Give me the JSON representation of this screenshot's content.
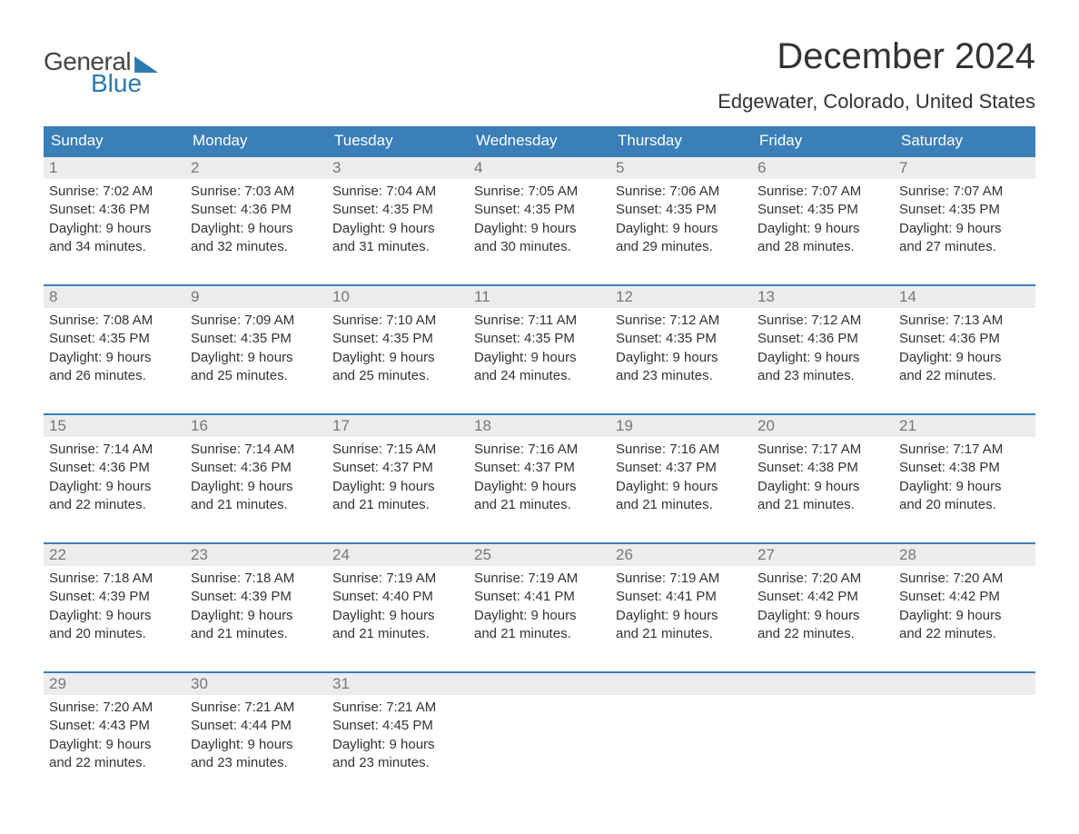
{
  "logo": {
    "textTop": "General",
    "textBottom": "Blue"
  },
  "header": {
    "monthTitle": "December 2024",
    "location": "Edgewater, Colorado, United States"
  },
  "colors": {
    "headerBlue": "#3a7fb8",
    "logoBlue": "#2a7ab0",
    "dayNumBg": "#ececec",
    "text": "#333333",
    "dayNumText": "#777777"
  },
  "days_of_week": [
    "Sunday",
    "Monday",
    "Tuesday",
    "Wednesday",
    "Thursday",
    "Friday",
    "Saturday"
  ],
  "weeks": [
    [
      {
        "n": "1",
        "sunrise": "7:02 AM",
        "sunset": "4:36 PM",
        "dl1": "Daylight: 9 hours",
        "dl2": "and 34 minutes."
      },
      {
        "n": "2",
        "sunrise": "7:03 AM",
        "sunset": "4:36 PM",
        "dl1": "Daylight: 9 hours",
        "dl2": "and 32 minutes."
      },
      {
        "n": "3",
        "sunrise": "7:04 AM",
        "sunset": "4:35 PM",
        "dl1": "Daylight: 9 hours",
        "dl2": "and 31 minutes."
      },
      {
        "n": "4",
        "sunrise": "7:05 AM",
        "sunset": "4:35 PM",
        "dl1": "Daylight: 9 hours",
        "dl2": "and 30 minutes."
      },
      {
        "n": "5",
        "sunrise": "7:06 AM",
        "sunset": "4:35 PM",
        "dl1": "Daylight: 9 hours",
        "dl2": "and 29 minutes."
      },
      {
        "n": "6",
        "sunrise": "7:07 AM",
        "sunset": "4:35 PM",
        "dl1": "Daylight: 9 hours",
        "dl2": "and 28 minutes."
      },
      {
        "n": "7",
        "sunrise": "7:07 AM",
        "sunset": "4:35 PM",
        "dl1": "Daylight: 9 hours",
        "dl2": "and 27 minutes."
      }
    ],
    [
      {
        "n": "8",
        "sunrise": "7:08 AM",
        "sunset": "4:35 PM",
        "dl1": "Daylight: 9 hours",
        "dl2": "and 26 minutes."
      },
      {
        "n": "9",
        "sunrise": "7:09 AM",
        "sunset": "4:35 PM",
        "dl1": "Daylight: 9 hours",
        "dl2": "and 25 minutes."
      },
      {
        "n": "10",
        "sunrise": "7:10 AM",
        "sunset": "4:35 PM",
        "dl1": "Daylight: 9 hours",
        "dl2": "and 25 minutes."
      },
      {
        "n": "11",
        "sunrise": "7:11 AM",
        "sunset": "4:35 PM",
        "dl1": "Daylight: 9 hours",
        "dl2": "and 24 minutes."
      },
      {
        "n": "12",
        "sunrise": "7:12 AM",
        "sunset": "4:35 PM",
        "dl1": "Daylight: 9 hours",
        "dl2": "and 23 minutes."
      },
      {
        "n": "13",
        "sunrise": "7:12 AM",
        "sunset": "4:36 PM",
        "dl1": "Daylight: 9 hours",
        "dl2": "and 23 minutes."
      },
      {
        "n": "14",
        "sunrise": "7:13 AM",
        "sunset": "4:36 PM",
        "dl1": "Daylight: 9 hours",
        "dl2": "and 22 minutes."
      }
    ],
    [
      {
        "n": "15",
        "sunrise": "7:14 AM",
        "sunset": "4:36 PM",
        "dl1": "Daylight: 9 hours",
        "dl2": "and 22 minutes."
      },
      {
        "n": "16",
        "sunrise": "7:14 AM",
        "sunset": "4:36 PM",
        "dl1": "Daylight: 9 hours",
        "dl2": "and 21 minutes."
      },
      {
        "n": "17",
        "sunrise": "7:15 AM",
        "sunset": "4:37 PM",
        "dl1": "Daylight: 9 hours",
        "dl2": "and 21 minutes."
      },
      {
        "n": "18",
        "sunrise": "7:16 AM",
        "sunset": "4:37 PM",
        "dl1": "Daylight: 9 hours",
        "dl2": "and 21 minutes."
      },
      {
        "n": "19",
        "sunrise": "7:16 AM",
        "sunset": "4:37 PM",
        "dl1": "Daylight: 9 hours",
        "dl2": "and 21 minutes."
      },
      {
        "n": "20",
        "sunrise": "7:17 AM",
        "sunset": "4:38 PM",
        "dl1": "Daylight: 9 hours",
        "dl2": "and 21 minutes."
      },
      {
        "n": "21",
        "sunrise": "7:17 AM",
        "sunset": "4:38 PM",
        "dl1": "Daylight: 9 hours",
        "dl2": "and 20 minutes."
      }
    ],
    [
      {
        "n": "22",
        "sunrise": "7:18 AM",
        "sunset": "4:39 PM",
        "dl1": "Daylight: 9 hours",
        "dl2": "and 20 minutes."
      },
      {
        "n": "23",
        "sunrise": "7:18 AM",
        "sunset": "4:39 PM",
        "dl1": "Daylight: 9 hours",
        "dl2": "and 21 minutes."
      },
      {
        "n": "24",
        "sunrise": "7:19 AM",
        "sunset": "4:40 PM",
        "dl1": "Daylight: 9 hours",
        "dl2": "and 21 minutes."
      },
      {
        "n": "25",
        "sunrise": "7:19 AM",
        "sunset": "4:41 PM",
        "dl1": "Daylight: 9 hours",
        "dl2": "and 21 minutes."
      },
      {
        "n": "26",
        "sunrise": "7:19 AM",
        "sunset": "4:41 PM",
        "dl1": "Daylight: 9 hours",
        "dl2": "and 21 minutes."
      },
      {
        "n": "27",
        "sunrise": "7:20 AM",
        "sunset": "4:42 PM",
        "dl1": "Daylight: 9 hours",
        "dl2": "and 22 minutes."
      },
      {
        "n": "28",
        "sunrise": "7:20 AM",
        "sunset": "4:42 PM",
        "dl1": "Daylight: 9 hours",
        "dl2": "and 22 minutes."
      }
    ],
    [
      {
        "n": "29",
        "sunrise": "7:20 AM",
        "sunset": "4:43 PM",
        "dl1": "Daylight: 9 hours",
        "dl2": "and 22 minutes."
      },
      {
        "n": "30",
        "sunrise": "7:21 AM",
        "sunset": "4:44 PM",
        "dl1": "Daylight: 9 hours",
        "dl2": "and 23 minutes."
      },
      {
        "n": "31",
        "sunrise": "7:21 AM",
        "sunset": "4:45 PM",
        "dl1": "Daylight: 9 hours",
        "dl2": "and 23 minutes."
      },
      {
        "empty": true
      },
      {
        "empty": true
      },
      {
        "empty": true
      },
      {
        "empty": true
      }
    ]
  ],
  "labels": {
    "sunrise": "Sunrise: ",
    "sunset": "Sunset: "
  }
}
